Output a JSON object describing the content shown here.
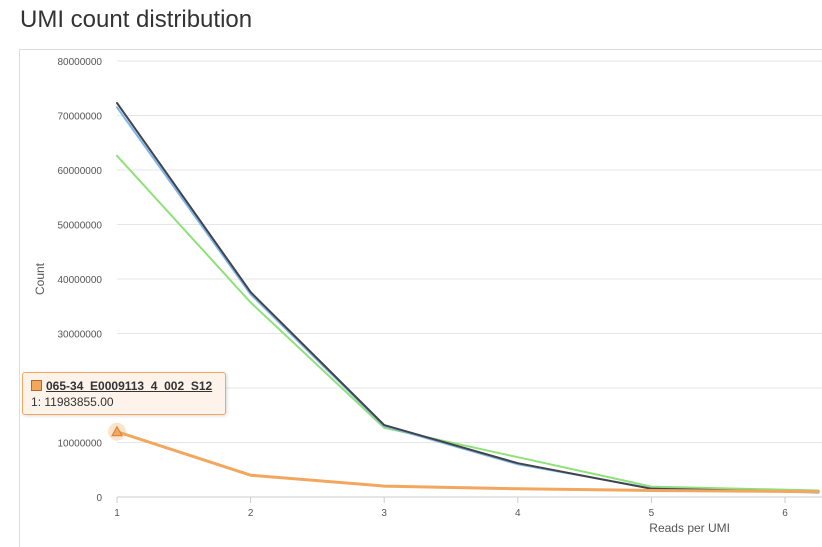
{
  "page": {
    "title": "UMI count distribution"
  },
  "tooltip": {
    "series_name": "065-34_E0009113_4_002_S12",
    "x_label": "1",
    "value": "11983855.00",
    "color": "#f2a65e"
  },
  "chart_data": {
    "type": "line",
    "title": "",
    "xlabel": "Reads per UMI",
    "ylabel": "Count",
    "xlim": [
      1,
      6.25
    ],
    "ylim": [
      0,
      80000000
    ],
    "x_ticks": [
      "1",
      "2",
      "3",
      "4",
      "5",
      "6"
    ],
    "y_ticks": [
      "0",
      "10000000",
      "20000000",
      "30000000",
      "40000000",
      "50000000",
      "60000000",
      "70000000",
      "80000000"
    ],
    "grid": true,
    "legend": "none",
    "x": [
      1,
      2,
      3,
      4,
      5,
      6.25
    ],
    "series": [
      {
        "color": "#8fe17a",
        "values": [
          62600000,
          35700000,
          12700000,
          7300000,
          1900000,
          1200000
        ]
      },
      {
        "color": "#7cb5ec",
        "values": [
          71500000,
          37200000,
          13000000,
          6000000,
          1600000,
          800000
        ]
      },
      {
        "color": "#434348",
        "values": [
          72300000,
          37600000,
          13200000,
          6200000,
          1500000,
          900000
        ]
      },
      {
        "name": "065-34_E0009113_4_002_S12",
        "color": "#f2a65e",
        "values": [
          11983855,
          4000000,
          2000000,
          1500000,
          1200000,
          1000000
        ]
      }
    ]
  }
}
